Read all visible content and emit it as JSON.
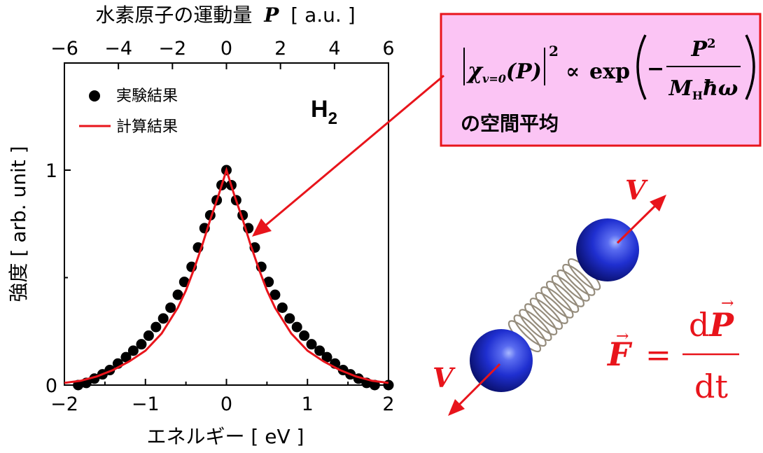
{
  "chart_data": {
    "type": "scatter",
    "xlabel": "エネルギー [ eV ]",
    "ylabel": "強度 [ arb. unit ]",
    "top_xlabel_text": "水素原子の運動量",
    "top_xlabel_symbol": "P",
    "top_xlabel_unit": "[ a.u. ]",
    "xlim": [
      -2,
      2
    ],
    "ylim": [
      0,
      1.3
    ],
    "top_xlim": [
      -6,
      6
    ],
    "x_ticks": [
      "−2",
      "−1",
      "0",
      "1",
      "2"
    ],
    "y_ticks": [
      "0",
      "1"
    ],
    "top_x_ticks": [
      "−6",
      "−4",
      "−2",
      "0",
      "2",
      "4",
      "6"
    ],
    "legend_position": "top-left",
    "molecule_label": "H",
    "molecule_subscript": "2",
    "series": [
      {
        "name": "実験結果",
        "kind": "points",
        "color": "#000000",
        "x": [
          -1.83,
          -1.73,
          -1.63,
          -1.53,
          -1.44,
          -1.34,
          -1.24,
          -1.15,
          -1.05,
          -0.96,
          -0.87,
          -0.78,
          -0.69,
          -0.6,
          -0.52,
          -0.43,
          -0.35,
          -0.27,
          -0.2,
          -0.12,
          -0.06,
          0.0,
          0.06,
          0.12,
          0.2,
          0.27,
          0.35,
          0.43,
          0.52,
          0.6,
          0.69,
          0.78,
          0.87,
          0.96,
          1.05,
          1.15,
          1.24,
          1.34,
          1.44,
          1.53,
          1.63,
          1.73,
          1.83,
          2.0
        ],
        "y": [
          0.0,
          0.01,
          0.03,
          0.05,
          0.07,
          0.1,
          0.13,
          0.16,
          0.19,
          0.23,
          0.27,
          0.31,
          0.36,
          0.42,
          0.48,
          0.55,
          0.64,
          0.73,
          0.79,
          0.86,
          0.93,
          1.0,
          0.93,
          0.86,
          0.79,
          0.73,
          0.64,
          0.55,
          0.48,
          0.42,
          0.36,
          0.31,
          0.27,
          0.23,
          0.19,
          0.16,
          0.13,
          0.1,
          0.07,
          0.05,
          0.03,
          0.01,
          0.0,
          0.0
        ]
      },
      {
        "name": "計算結果",
        "kind": "line",
        "color": "#e8141b",
        "x": [
          -2.0,
          -1.8,
          -1.6,
          -1.4,
          -1.2,
          -1.0,
          -0.8,
          -0.6,
          -0.5,
          -0.4,
          -0.3,
          -0.2,
          -0.1,
          0.0,
          0.1,
          0.2,
          0.3,
          0.4,
          0.5,
          0.6,
          0.8,
          1.0,
          1.2,
          1.4,
          1.6,
          1.8,
          2.0
        ],
        "y": [
          0.01,
          0.02,
          0.04,
          0.07,
          0.11,
          0.16,
          0.24,
          0.36,
          0.44,
          0.54,
          0.65,
          0.77,
          0.88,
          1.0,
          0.88,
          0.77,
          0.65,
          0.54,
          0.44,
          0.36,
          0.24,
          0.16,
          0.11,
          0.07,
          0.04,
          0.02,
          0.01
        ]
      }
    ]
  },
  "formula_box": {
    "chi": "χ",
    "chi_sub": "v=0",
    "arg": "(P)",
    "power": "2",
    "propto": "∝",
    "exp": "exp",
    "minus": "−",
    "num_base": "P",
    "num_power": "2",
    "den_m": "M",
    "den_m_sub": "H",
    "den_rest": "ħω",
    "caption": "の空間平均",
    "border_color": "#e8141b",
    "fill_color": "#fbc4f4"
  },
  "molecule": {
    "velocity_top": "V",
    "velocity_bottom": "V",
    "sphere_color": "#1f2fd0",
    "spring_color": "#958c7c"
  },
  "equation": {
    "lhs": "F",
    "equals": "=",
    "num_d": "d",
    "num_var": "P",
    "den": "dt",
    "arrow": "→",
    "color": "#e8141b"
  }
}
